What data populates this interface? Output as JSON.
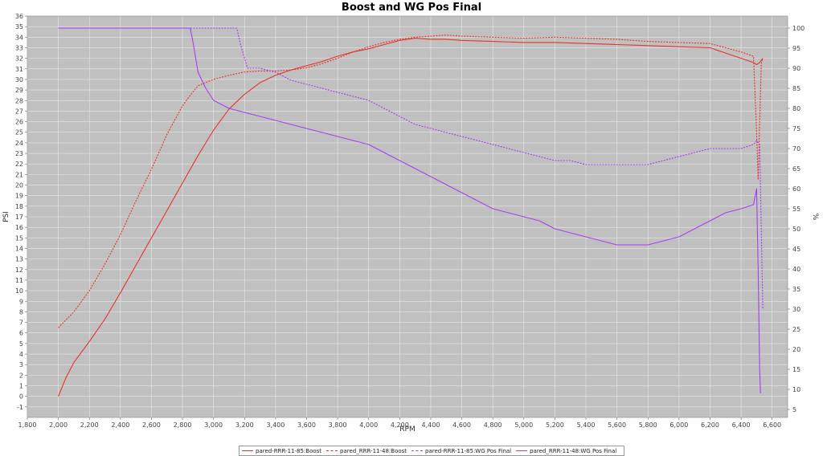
{
  "chart_data": {
    "type": "line",
    "title": "Boost and WG Pos Final",
    "xlabel": "RPM",
    "ylabel": "PSI",
    "y2label": "%",
    "xlim": [
      1800,
      6700
    ],
    "ylim": [
      -2,
      36
    ],
    "y2lim": [
      3,
      103
    ],
    "x_ticks": [
      1800,
      2000,
      2200,
      2400,
      2600,
      2800,
      3000,
      3200,
      3400,
      3600,
      3800,
      4000,
      4200,
      4400,
      4600,
      4800,
      5000,
      5200,
      5400,
      5600,
      5800,
      6000,
      6200,
      6400,
      6600
    ],
    "x_tick_labels": [
      "1,800",
      "2,000",
      "2,200",
      "2,400",
      "2,600",
      "2,800",
      "3,000",
      "3,200",
      "3,400",
      "3,600",
      "3,800",
      "4,000",
      "4,200",
      "4,400",
      "4,600",
      "4,800",
      "5,000",
      "5,200",
      "5,400",
      "5,600",
      "5,800",
      "6,000",
      "6,200",
      "6,400",
      "6,600"
    ],
    "y_ticks": [
      -1,
      0,
      1,
      2,
      3,
      4,
      5,
      6,
      7,
      8,
      9,
      10,
      11,
      12,
      13,
      14,
      15,
      16,
      17,
      18,
      19,
      20,
      21,
      22,
      23,
      24,
      25,
      26,
      27,
      28,
      29,
      30,
      31,
      32,
      33,
      34,
      35,
      36
    ],
    "y2_ticks": [
      5,
      10,
      15,
      20,
      25,
      30,
      35,
      40,
      45,
      50,
      55,
      60,
      65,
      70,
      75,
      80,
      85,
      90,
      95,
      100
    ],
    "grid": true,
    "legend_position": "bottom",
    "colors": {
      "plot_bg": "#c0c0c0",
      "grid": "#e8e8e8",
      "boost": "#e8332a",
      "wg": "#a540f0"
    },
    "series": [
      {
        "name": "pared-RRR-11-85:Boost",
        "axis": "left",
        "style": "solid",
        "color": "#e8332a",
        "x": [
          2000,
          2050,
          2100,
          2200,
          2300,
          2400,
          2500,
          2600,
          2700,
          2800,
          2900,
          3000,
          3050,
          3100,
          3200,
          3300,
          3400,
          3500,
          3600,
          3700,
          3800,
          3900,
          4000,
          4100,
          4200,
          4300,
          4400,
          4500,
          4600,
          4800,
          5000,
          5200,
          5400,
          5600,
          5800,
          6000,
          6200,
          6300,
          6400,
          6480,
          6500,
          6520,
          6540
        ],
        "y": [
          0,
          1.8,
          3.2,
          5.2,
          7.3,
          9.8,
          12.4,
          15.0,
          17.6,
          20.2,
          22.8,
          25.2,
          26.2,
          27.2,
          28.6,
          29.7,
          30.4,
          30.9,
          31.3,
          31.7,
          32.2,
          32.6,
          32.9,
          33.3,
          33.7,
          33.9,
          33.8,
          33.8,
          33.7,
          33.6,
          33.5,
          33.5,
          33.4,
          33.3,
          33.2,
          33.1,
          33.0,
          32.5,
          32.0,
          31.6,
          31.4,
          31.6,
          32.0
        ]
      },
      {
        "name": "pared_RRR-11-48:Boost",
        "axis": "left",
        "style": "dashed",
        "color": "#e8332a",
        "x": [
          2000,
          2100,
          2200,
          2300,
          2400,
          2500,
          2600,
          2700,
          2800,
          2850,
          2900,
          3000,
          3100,
          3200,
          3300,
          3400,
          3500,
          3600,
          3700,
          3800,
          3900,
          4000,
          4100,
          4200,
          4300,
          4400,
          4500,
          4600,
          4800,
          5000,
          5200,
          5400,
          5600,
          5800,
          6000,
          6200,
          6300,
          6400,
          6480,
          6500,
          6510,
          6530,
          6540
        ],
        "y": [
          6.5,
          8.0,
          10.0,
          12.5,
          15.3,
          18.5,
          21.5,
          24.8,
          27.5,
          28.5,
          29.4,
          30.0,
          30.4,
          30.7,
          30.8,
          30.8,
          30.9,
          31.1,
          31.5,
          32.0,
          32.6,
          33.1,
          33.5,
          33.8,
          34.0,
          34.1,
          34.2,
          34.1,
          34.0,
          33.9,
          34.0,
          33.9,
          33.8,
          33.6,
          33.5,
          33.4,
          33.0,
          32.6,
          32.2,
          25.0,
          20.5,
          31.5,
          32.0
        ]
      },
      {
        "name": "pared-RRR-11-85:WG Pos Final",
        "axis": "right",
        "style": "dashed",
        "color": "#a540f0",
        "x": [
          2000,
          2500,
          3000,
          3150,
          3180,
          3220,
          3300,
          3400,
          3500,
          3600,
          3700,
          3800,
          3900,
          4000,
          4100,
          4200,
          4300,
          4400,
          4500,
          4600,
          4700,
          4800,
          4900,
          5000,
          5100,
          5200,
          5300,
          5400,
          5500,
          5600,
          5700,
          5800,
          5900,
          6000,
          6100,
          6200,
          6300,
          6400,
          6480,
          6500,
          6520,
          6540
        ],
        "y": [
          100,
          100,
          100,
          100,
          95,
          90,
          90,
          89,
          87,
          86,
          85,
          84,
          83,
          82,
          80,
          78,
          76,
          75,
          74,
          73,
          72,
          71,
          70,
          69,
          68,
          67,
          67,
          66,
          66,
          66,
          66,
          66,
          67,
          68,
          69,
          70,
          70,
          70,
          71,
          72,
          71,
          30
        ]
      },
      {
        "name": "pared_RRR-11-48:WG Pos Final",
        "axis": "right",
        "style": "solid",
        "color": "#a540f0",
        "x": [
          2000,
          2500,
          2850,
          2870,
          2900,
          2950,
          3000,
          3100,
          3200,
          3300,
          3400,
          3500,
          3600,
          3700,
          3800,
          3900,
          4000,
          4100,
          4200,
          4300,
          4400,
          4500,
          4600,
          4700,
          4800,
          4900,
          5000,
          5100,
          5200,
          5300,
          5400,
          5500,
          5600,
          5700,
          5800,
          5900,
          6000,
          6100,
          6200,
          6300,
          6400,
          6480,
          6500,
          6510,
          6520,
          6525
        ],
        "y": [
          100,
          100,
          100,
          96,
          89,
          85,
          82,
          80,
          79,
          78,
          77,
          76,
          75,
          74,
          73,
          72,
          71,
          69,
          67,
          65,
          63,
          61,
          59,
          57,
          55,
          54,
          53,
          52,
          50,
          49,
          48,
          47,
          46,
          46,
          46,
          47,
          48,
          50,
          52,
          54,
          55,
          56,
          60,
          40,
          15,
          9
        ]
      }
    ]
  }
}
